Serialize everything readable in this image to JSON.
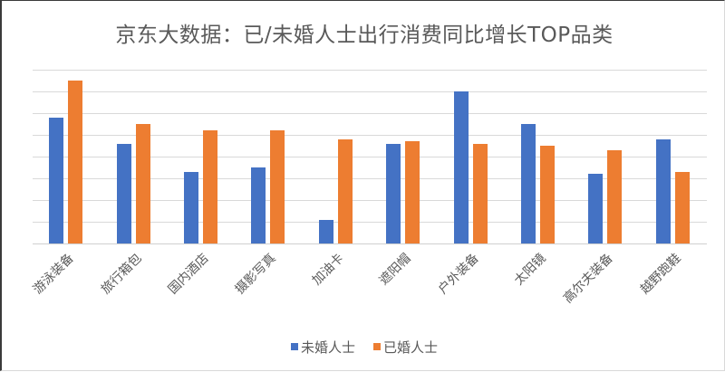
{
  "title": "京东大数据：已/未婚人士出行消费同比增长TOP品类",
  "legend": [
    {
      "label": "未婚人士",
      "color": "#4472c4"
    },
    {
      "label": "已婚人士",
      "color": "#ed7d31"
    }
  ],
  "chart_data": {
    "type": "bar",
    "title": "京东大数据：已/未婚人士出行消费同比增长TOP品类",
    "xlabel": "",
    "ylabel": "",
    "categories": [
      "游泳装备",
      "旅行箱包",
      "国内酒店",
      "摄影写真",
      "加油卡",
      "遮阳帽",
      "户外装备",
      "太阳镜",
      "高尔夫装备",
      "越野跑鞋"
    ],
    "series": [
      {
        "name": "未婚人士",
        "color": "#4472c4",
        "values": [
          5.8,
          4.6,
          3.3,
          3.5,
          1.1,
          4.6,
          7.0,
          5.5,
          3.2,
          4.8
        ]
      },
      {
        "name": "已婚人士",
        "color": "#ed7d31",
        "values": [
          7.5,
          5.5,
          5.2,
          5.2,
          4.8,
          4.7,
          4.6,
          4.5,
          4.3,
          3.3
        ]
      }
    ],
    "ylim": [
      0,
      8
    ],
    "y_axis_labels_visible": false,
    "grid": true,
    "gridline_count": 8,
    "legend_position": "bottom"
  }
}
